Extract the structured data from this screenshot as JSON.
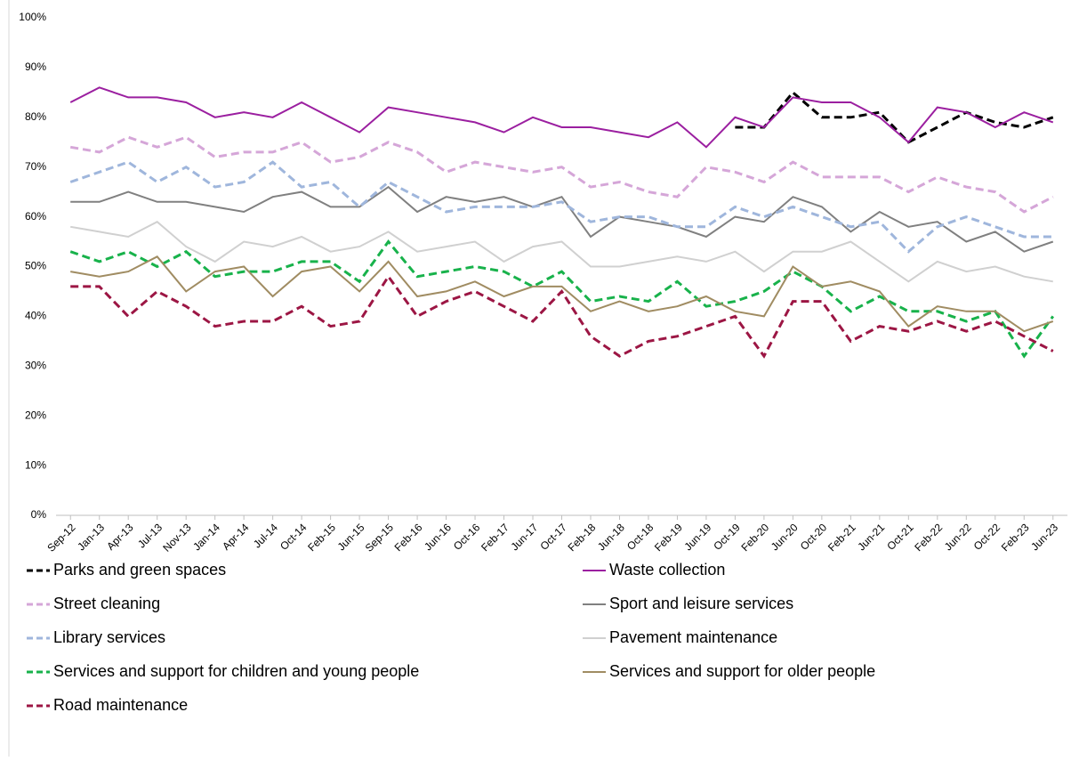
{
  "chart_data": {
    "type": "line",
    "categories": [
      "Sep-12",
      "Jan-13",
      "Apr-13",
      "Jul-13",
      "Nov-13",
      "Jan-14",
      "Apr-14",
      "Jul-14",
      "Oct-14",
      "Feb-15",
      "Jun-15",
      "Sep-15",
      "Feb-16",
      "Jun-16",
      "Oct-16",
      "Feb-17",
      "Jun-17",
      "Oct-17",
      "Feb-18",
      "Jun-18",
      "Oct-18",
      "Feb-19",
      "Jun-19",
      "Oct-19",
      "Feb-20",
      "Jun-20",
      "Oct-20",
      "Feb-21",
      "Jun-21",
      "Oct-21",
      "Feb-22",
      "Jun-22",
      "Oct-22",
      "Feb-23",
      "Jun-23"
    ],
    "ylim": [
      0,
      100
    ],
    "yticks": [
      {
        "value": 0,
        "label": "0%"
      },
      {
        "value": 10,
        "label": "10%"
      },
      {
        "value": 20,
        "label": "20%"
      },
      {
        "value": 30,
        "label": "30%"
      },
      {
        "value": 40,
        "label": "40%"
      },
      {
        "value": 50,
        "label": "50%"
      },
      {
        "value": 60,
        "label": "60%"
      },
      {
        "value": 70,
        "label": "70%"
      },
      {
        "value": 80,
        "label": "80%"
      },
      {
        "value": 90,
        "label": "90%"
      },
      {
        "value": 100,
        "label": "100%"
      }
    ],
    "series": [
      {
        "name": "Parks and green spaces",
        "color": "#000000",
        "dash": true,
        "values": [
          null,
          null,
          null,
          null,
          null,
          null,
          null,
          null,
          null,
          null,
          null,
          null,
          null,
          null,
          null,
          null,
          null,
          null,
          null,
          null,
          null,
          null,
          null,
          78,
          78,
          85,
          80,
          80,
          81,
          75,
          78,
          81,
          79,
          78,
          80
        ]
      },
      {
        "name": "Waste collection",
        "color": "#9b1fa0",
        "dash": false,
        "values": [
          83,
          86,
          84,
          84,
          83,
          80,
          81,
          80,
          83,
          80,
          77,
          82,
          81,
          80,
          79,
          77,
          80,
          78,
          78,
          77,
          76,
          79,
          74,
          80,
          78,
          84,
          83,
          83,
          80,
          75,
          82,
          81,
          78,
          81,
          79
        ]
      },
      {
        "name": "Street cleaning",
        "color": "#d5a6d8",
        "dash": true,
        "values": [
          74,
          73,
          76,
          74,
          76,
          72,
          73,
          73,
          75,
          71,
          72,
          75,
          73,
          69,
          71,
          70,
          69,
          70,
          66,
          67,
          65,
          64,
          70,
          69,
          67,
          71,
          68,
          68,
          68,
          65,
          68,
          66,
          65,
          61,
          64
        ]
      },
      {
        "name": "Sport and leisure services",
        "color": "#808080",
        "dash": false,
        "values": [
          63,
          63,
          65,
          63,
          63,
          62,
          61,
          64,
          65,
          62,
          62,
          66,
          61,
          64,
          63,
          64,
          62,
          64,
          56,
          60,
          59,
          58,
          56,
          60,
          59,
          64,
          62,
          57,
          61,
          58,
          59,
          55,
          57,
          53,
          55
        ]
      },
      {
        "name": "Library services",
        "color": "#9fb6dc",
        "dash": true,
        "values": [
          67,
          69,
          71,
          67,
          70,
          66,
          67,
          71,
          66,
          67,
          62,
          67,
          64,
          61,
          62,
          62,
          62,
          63,
          59,
          60,
          60,
          58,
          58,
          62,
          60,
          62,
          60,
          58,
          59,
          53,
          58,
          60,
          58,
          56,
          56
        ]
      },
      {
        "name": "Pavement maintenance",
        "color": "#d0d0d0",
        "dash": false,
        "values": [
          58,
          57,
          56,
          59,
          54,
          51,
          55,
          54,
          56,
          53,
          54,
          57,
          53,
          54,
          55,
          51,
          54,
          55,
          50,
          50,
          51,
          52,
          51,
          53,
          49,
          53,
          53,
          55,
          51,
          47,
          51,
          49,
          50,
          48,
          47
        ]
      },
      {
        "name": "Services and support for children and young people",
        "color": "#18b24b",
        "dash": true,
        "values": [
          53,
          51,
          53,
          50,
          53,
          48,
          49,
          49,
          51,
          51,
          47,
          55,
          48,
          49,
          50,
          49,
          46,
          49,
          43,
          44,
          43,
          47,
          42,
          43,
          45,
          49,
          46,
          41,
          44,
          41,
          41,
          39,
          41,
          32,
          40
        ]
      },
      {
        "name": "Services and support for older people",
        "color": "#a08c62",
        "dash": false,
        "values": [
          49,
          48,
          49,
          52,
          45,
          49,
          50,
          44,
          49,
          50,
          45,
          51,
          44,
          45,
          47,
          44,
          46,
          46,
          41,
          43,
          41,
          42,
          44,
          41,
          40,
          50,
          46,
          47,
          45,
          38,
          42,
          41,
          41,
          37,
          39
        ]
      },
      {
        "name": "Road maintenance",
        "color": "#9c1644",
        "dash": true,
        "values": [
          46,
          46,
          40,
          45,
          42,
          38,
          39,
          39,
          42,
          38,
          39,
          48,
          40,
          43,
          45,
          42,
          39,
          45,
          36,
          32,
          35,
          36,
          38,
          40,
          32,
          43,
          43,
          35,
          38,
          37,
          39,
          37,
          39,
          36,
          33
        ]
      }
    ]
  }
}
